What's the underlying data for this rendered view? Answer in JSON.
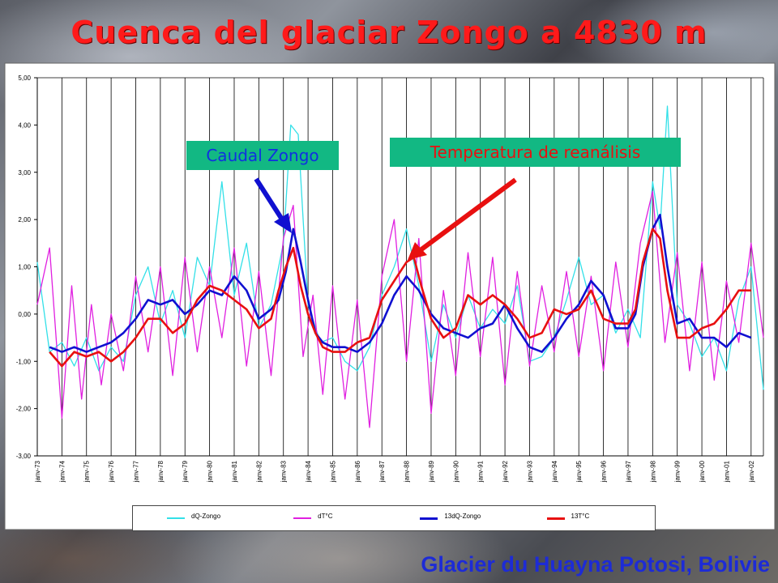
{
  "title": "Cuenca del glaciar Zongo a 4830 m",
  "footer": "Glacier du Huayna Potosi, Bolivie",
  "callouts": {
    "caudal": "Caudal Zongo",
    "temperatura": "Temperatura de reanálisis"
  },
  "colors": {
    "title": "#ff1a1a",
    "callout_bg": "#12b883",
    "caudal_text": "#1030e0",
    "temp_text": "#e81010",
    "arrow_blue": "#1010d0",
    "arrow_red": "#e81010"
  },
  "chart_data": {
    "type": "line",
    "title": "",
    "xlabel": "",
    "ylabel": "",
    "ylim": [
      -3,
      5
    ],
    "y_ticks": [
      "-3,00",
      "-2,00",
      "-1,00",
      "0,00",
      "1,00",
      "2,00",
      "3,00",
      "4,00",
      "5,00"
    ],
    "x_range": [
      1973.0,
      2002.5
    ],
    "x_tick_labels": [
      "janv-73",
      "janv-74",
      "janv-75",
      "janv-76",
      "janv-77",
      "janv-78",
      "janv-79",
      "janv-80",
      "janv-81",
      "janv-82",
      "janv-83",
      "janv-84",
      "janv-85",
      "janv-86",
      "janv-87",
      "janv-88",
      "janv-89",
      "janv-90",
      "janv-91",
      "janv-92",
      "janv-93",
      "janv-94",
      "janv-95",
      "janv-96",
      "janv-97",
      "janv-98",
      "janv-99",
      "janv-00",
      "janv-01",
      "janv-02"
    ],
    "grid": "vertical",
    "legend_position": "bottom",
    "series": [
      {
        "name": "dQ-Zongo",
        "color": "#33e0e8",
        "width": 1.3,
        "x": [
          1973.0,
          1973.5,
          1974.0,
          1974.5,
          1975.0,
          1975.5,
          1976.0,
          1976.5,
          1977.0,
          1977.5,
          1978.0,
          1978.5,
          1979.0,
          1979.5,
          1980.0,
          1980.5,
          1981.0,
          1981.5,
          1982.0,
          1982.5,
          1983.0,
          1983.3,
          1983.6,
          1984.0,
          1984.5,
          1985.0,
          1985.5,
          1986.0,
          1986.5,
          1987.0,
          1987.5,
          1988.0,
          1988.5,
          1989.0,
          1989.5,
          1990.0,
          1990.5,
          1991.0,
          1991.5,
          1992.0,
          1992.5,
          1993.0,
          1993.5,
          1994.0,
          1994.5,
          1995.0,
          1995.5,
          1996.0,
          1996.5,
          1997.0,
          1997.5,
          1998.0,
          1998.3,
          1998.6,
          1999.0,
          1999.5,
          2000.0,
          2000.5,
          2001.0,
          2001.5,
          2002.0,
          2002.5
        ],
        "y": [
          1.1,
          -0.8,
          -0.6,
          -1.1,
          -0.5,
          -1.2,
          -0.7,
          -1.0,
          0.4,
          1.0,
          -0.2,
          0.5,
          -0.5,
          1.2,
          0.6,
          2.8,
          0.4,
          1.5,
          -0.3,
          0.2,
          1.5,
          4.0,
          3.8,
          0.2,
          -0.6,
          -0.5,
          -1.0,
          -1.2,
          -0.7,
          0.4,
          1.0,
          1.8,
          0.6,
          -1.0,
          0.2,
          -0.5,
          0.4,
          -0.3,
          0.1,
          -0.2,
          0.6,
          -1.0,
          -0.9,
          -0.5,
          0.3,
          1.2,
          0.2,
          0.4,
          -0.4,
          0.1,
          -0.5,
          2.8,
          1.8,
          4.4,
          0.2,
          -0.2,
          -0.9,
          -0.5,
          -1.2,
          0.3,
          1.0,
          -1.6
        ]
      },
      {
        "name": "dT°C",
        "color": "#e020e0",
        "width": 1.3,
        "x": [
          1973.0,
          1973.5,
          1974.0,
          1974.4,
          1974.8,
          1975.2,
          1975.6,
          1976.0,
          1976.5,
          1977.0,
          1977.5,
          1978.0,
          1978.5,
          1979.0,
          1979.5,
          1980.0,
          1980.5,
          1981.0,
          1981.5,
          1982.0,
          1982.5,
          1983.0,
          1983.4,
          1983.8,
          1984.2,
          1984.6,
          1985.0,
          1985.5,
          1986.0,
          1986.5,
          1987.0,
          1987.5,
          1988.0,
          1988.5,
          1989.0,
          1989.5,
          1990.0,
          1990.5,
          1991.0,
          1991.5,
          1992.0,
          1992.5,
          1993.0,
          1993.5,
          1994.0,
          1994.5,
          1995.0,
          1995.5,
          1996.0,
          1996.5,
          1997.0,
          1997.5,
          1998.0,
          1998.5,
          1999.0,
          1999.5,
          2000.0,
          2000.5,
          2001.0,
          2001.5,
          2002.0,
          2002.5
        ],
        "y": [
          0.2,
          1.4,
          -2.2,
          0.6,
          -1.8,
          0.2,
          -1.5,
          0.0,
          -1.2,
          0.8,
          -0.8,
          1.0,
          -1.3,
          1.2,
          -0.8,
          1.0,
          -0.5,
          1.4,
          -1.1,
          0.9,
          -1.3,
          1.6,
          2.3,
          -0.9,
          0.4,
          -1.7,
          0.6,
          -1.8,
          0.3,
          -2.4,
          0.8,
          2.0,
          -1.0,
          1.6,
          -2.1,
          0.5,
          -1.3,
          1.3,
          -0.9,
          1.2,
          -1.5,
          0.9,
          -1.1,
          0.6,
          -0.8,
          0.9,
          -0.9,
          0.8,
          -1.2,
          1.1,
          -0.7,
          1.5,
          2.6,
          -0.6,
          1.3,
          -1.2,
          1.1,
          -1.4,
          0.7,
          -0.6,
          1.5,
          -0.5
        ]
      },
      {
        "name": "13dQ-Zongo",
        "color": "#1010d0",
        "width": 2.6,
        "x": [
          1973.5,
          1974.0,
          1974.5,
          1975.0,
          1975.5,
          1976.0,
          1976.5,
          1977.0,
          1977.5,
          1978.0,
          1978.5,
          1979.0,
          1979.5,
          1980.0,
          1980.5,
          1981.0,
          1981.5,
          1982.0,
          1982.5,
          1982.8,
          1983.1,
          1983.4,
          1983.7,
          1984.0,
          1984.3,
          1984.6,
          1985.0,
          1985.5,
          1986.0,
          1986.5,
          1987.0,
          1987.5,
          1988.0,
          1988.5,
          1989.0,
          1989.5,
          1990.0,
          1990.5,
          1991.0,
          1991.5,
          1992.0,
          1992.5,
          1993.0,
          1993.5,
          1994.0,
          1994.5,
          1995.0,
          1995.5,
          1996.0,
          1996.5,
          1997.0,
          1997.3,
          1997.6,
          1998.0,
          1998.3,
          1998.6,
          1999.0,
          1999.5,
          2000.0,
          2000.5,
          2001.0,
          2001.5,
          2002.0
        ],
        "y": [
          -0.7,
          -0.8,
          -0.7,
          -0.8,
          -0.7,
          -0.6,
          -0.4,
          -0.1,
          0.3,
          0.2,
          0.3,
          0.0,
          0.2,
          0.5,
          0.4,
          0.8,
          0.5,
          -0.1,
          0.1,
          0.3,
          0.9,
          1.8,
          1.1,
          0.3,
          -0.4,
          -0.6,
          -0.7,
          -0.7,
          -0.8,
          -0.6,
          -0.2,
          0.4,
          0.8,
          0.5,
          0.0,
          -0.3,
          -0.4,
          -0.5,
          -0.3,
          -0.2,
          0.2,
          -0.3,
          -0.7,
          -0.8,
          -0.5,
          -0.1,
          0.2,
          0.7,
          0.4,
          -0.3,
          -0.3,
          0.0,
          1.0,
          1.8,
          2.1,
          1.0,
          -0.2,
          -0.1,
          -0.5,
          -0.5,
          -0.7,
          -0.4,
          -0.5
        ]
      },
      {
        "name": "13T°C",
        "color": "#e81010",
        "width": 2.6,
        "x": [
          1973.5,
          1974.0,
          1974.5,
          1975.0,
          1975.5,
          1976.0,
          1976.5,
          1977.0,
          1977.5,
          1978.0,
          1978.5,
          1979.0,
          1979.5,
          1980.0,
          1980.5,
          1981.0,
          1981.5,
          1982.0,
          1982.5,
          1982.8,
          1983.1,
          1983.4,
          1983.7,
          1984.0,
          1984.3,
          1984.6,
          1985.0,
          1985.5,
          1986.0,
          1986.5,
          1987.0,
          1987.5,
          1988.0,
          1988.3,
          1988.6,
          1989.0,
          1989.5,
          1990.0,
          1990.5,
          1991.0,
          1991.5,
          1992.0,
          1992.5,
          1993.0,
          1993.5,
          1994.0,
          1994.5,
          1995.0,
          1995.5,
          1996.0,
          1996.5,
          1997.0,
          1997.3,
          1997.6,
          1998.0,
          1998.3,
          1998.6,
          1999.0,
          1999.5,
          2000.0,
          2000.5,
          2001.0,
          2001.5,
          2002.0
        ],
        "y": [
          -0.8,
          -1.1,
          -0.8,
          -0.9,
          -0.8,
          -1.0,
          -0.8,
          -0.5,
          -0.1,
          -0.1,
          -0.4,
          -0.2,
          0.3,
          0.6,
          0.5,
          0.3,
          0.1,
          -0.3,
          -0.1,
          0.5,
          1.0,
          1.4,
          0.6,
          0.0,
          -0.4,
          -0.7,
          -0.8,
          -0.8,
          -0.6,
          -0.5,
          0.3,
          0.7,
          1.1,
          1.2,
          0.6,
          -0.1,
          -0.5,
          -0.3,
          0.4,
          0.2,
          0.4,
          0.2,
          -0.1,
          -0.5,
          -0.4,
          0.1,
          0.0,
          0.1,
          0.5,
          -0.1,
          -0.2,
          -0.2,
          0.1,
          1.1,
          1.8,
          1.6,
          0.5,
          -0.5,
          -0.5,
          -0.3,
          -0.2,
          0.1,
          0.5,
          0.5
        ]
      }
    ]
  }
}
